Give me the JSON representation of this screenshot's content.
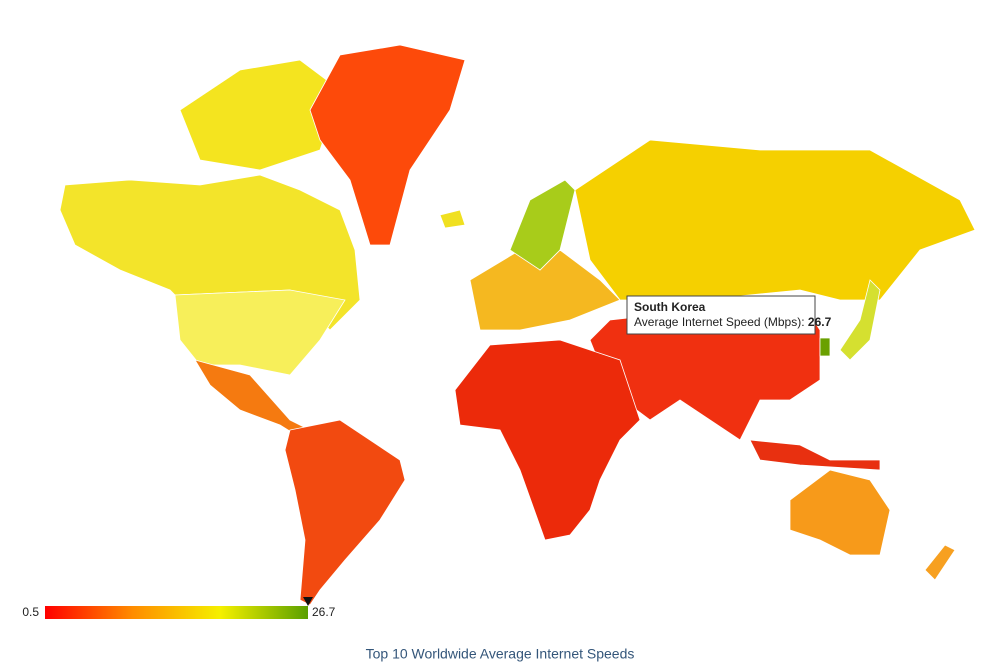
{
  "chart_data": {
    "type": "choropleth",
    "title": "Top 10 Worldwide Average Internet Speeds",
    "colorbar": {
      "lim": [
        0.5,
        26.7
      ],
      "ticks": [
        0.5,
        26.7
      ],
      "colors": [
        "#ff0000",
        "#ff8c00",
        "#f5f000",
        "#5aa000"
      ]
    },
    "tooltip": {
      "country": "South Korea",
      "label": "Average Internet Speed (Mbps):",
      "value": 26.7
    }
  }
}
